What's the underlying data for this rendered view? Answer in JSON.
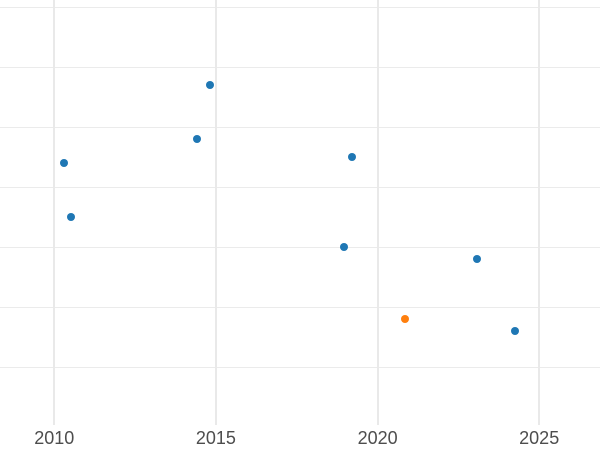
{
  "chart_data": {
    "type": "scatter",
    "title": "",
    "xlabel": "",
    "ylabel": "",
    "grid": true,
    "legend_position": "none",
    "xlim": [
      2008.32,
      2026.88
    ],
    "ylim": [
      0.038,
      7.122
    ],
    "x_ticks": [
      {
        "value": 2010,
        "label": "2010"
      },
      {
        "value": 2015,
        "label": "2015"
      },
      {
        "value": 2020,
        "label": "2020"
      },
      {
        "value": 2025,
        "label": "2025"
      }
    ],
    "y_gridline_values": [
      1,
      2,
      3,
      4,
      5,
      6,
      7
    ],
    "marker_size_px": 8,
    "series": [
      {
        "name": "blue-points",
        "color": "#1f77b4",
        "points": [
          {
            "x": 2010.31,
            "y": 4.4
          },
          {
            "x": 2010.5,
            "y": 3.5
          },
          {
            "x": 2014.4,
            "y": 4.8
          },
          {
            "x": 2014.8,
            "y": 5.7
          },
          {
            "x": 2018.97,
            "y": 3.0
          },
          {
            "x": 2019.2,
            "y": 4.5
          },
          {
            "x": 2023.07,
            "y": 2.8
          },
          {
            "x": 2024.25,
            "y": 1.6
          }
        ]
      },
      {
        "name": "highlight-point",
        "color": "#ff7f0e",
        "points": [
          {
            "x": 2020.86,
            "y": 1.8
          }
        ]
      }
    ],
    "colors": {
      "background": "#ffffff",
      "gridline": "#ebebeb",
      "tick_label": "#4d4d4d"
    }
  }
}
